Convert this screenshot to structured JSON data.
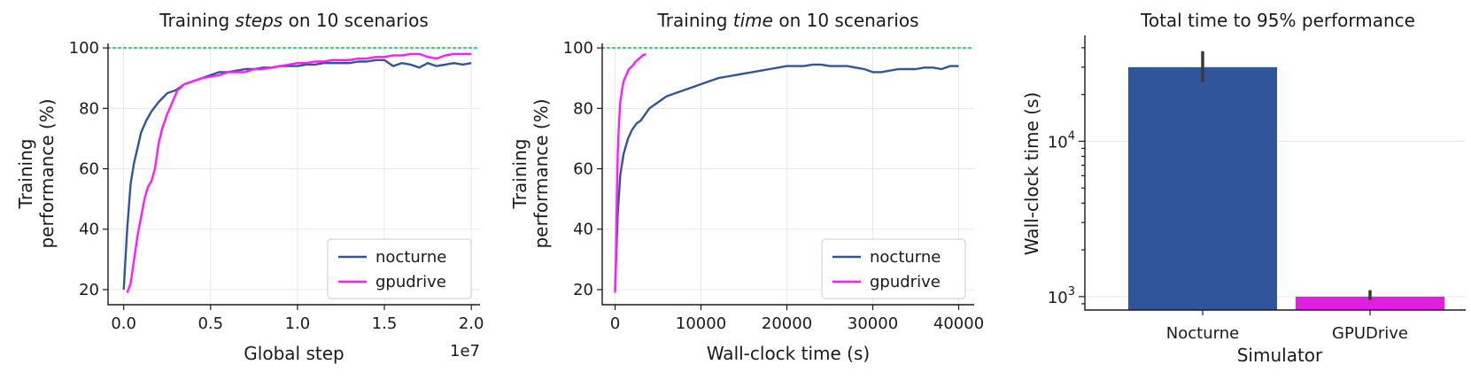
{
  "colors": {
    "nocturne": "#31559a",
    "gpudrive": "#ff1aff",
    "gpudrive_bar": "#e01fe0",
    "target_line": "#4ec97a",
    "errorbar": "#3a3a3a"
  },
  "chart_data": [
    {
      "type": "line",
      "title_prefix": "Training ",
      "title_emph": "steps",
      "title_suffix": " on 10 scenarios",
      "xlabel": "Global step",
      "ylabel_lines": [
        "Training",
        "performance (%)"
      ],
      "x_offset_label": "1e7",
      "xlim": [
        -0.09,
        2.05
      ],
      "ylim": [
        15,
        101.5
      ],
      "xticks": [
        0.0,
        0.5,
        1.0,
        1.5,
        2.0
      ],
      "xtick_labels": [
        "0.0",
        "0.5",
        "1.0",
        "1.5",
        "2.0"
      ],
      "yticks": [
        20,
        40,
        60,
        80,
        100
      ],
      "ytick_labels": [
        "20",
        "40",
        "60",
        "80",
        "100"
      ],
      "target_line_y": 100,
      "grid": true,
      "legend": "lower-right",
      "series": [
        {
          "name": "nocturne",
          "color": "nocturne",
          "x": [
            0.0,
            0.02,
            0.04,
            0.06,
            0.08,
            0.1,
            0.13,
            0.16,
            0.2,
            0.25,
            0.3,
            0.35,
            0.4,
            0.45,
            0.5,
            0.55,
            0.6,
            0.65,
            0.7,
            0.75,
            0.8,
            0.85,
            0.9,
            0.95,
            1.0,
            1.05,
            1.1,
            1.15,
            1.2,
            1.25,
            1.3,
            1.35,
            1.4,
            1.45,
            1.5,
            1.55,
            1.6,
            1.65,
            1.7,
            1.75,
            1.8,
            1.85,
            1.9,
            1.95,
            2.0
          ],
          "y": [
            20,
            40,
            55,
            62,
            67,
            72,
            76,
            79,
            82,
            85,
            86,
            88,
            89,
            90,
            91,
            92,
            92,
            92.5,
            93,
            93,
            93.5,
            93.5,
            94,
            94,
            94,
            94.5,
            94.5,
            95,
            95,
            95,
            95,
            95.5,
            95.5,
            96,
            96,
            94,
            95,
            94.5,
            93.5,
            95,
            94,
            94.5,
            95,
            94.5,
            95
          ]
        },
        {
          "name": "gpudrive",
          "color": "gpudrive",
          "x": [
            0.02,
            0.04,
            0.06,
            0.08,
            0.1,
            0.12,
            0.14,
            0.16,
            0.18,
            0.2,
            0.22,
            0.25,
            0.28,
            0.31,
            0.35,
            0.4,
            0.45,
            0.5,
            0.55,
            0.6,
            0.65,
            0.7,
            0.75,
            0.8,
            0.85,
            0.9,
            0.95,
            1.0,
            1.05,
            1.1,
            1.15,
            1.2,
            1.25,
            1.3,
            1.35,
            1.4,
            1.45,
            1.5,
            1.55,
            1.6,
            1.65,
            1.7,
            1.75,
            1.8,
            1.85,
            1.9,
            1.95,
            2.0
          ],
          "y": [
            19,
            22,
            30,
            38,
            44,
            50,
            54,
            56,
            60,
            68,
            73,
            78,
            82,
            86,
            88,
            89,
            90,
            90.5,
            91,
            92,
            92,
            92,
            93,
            93,
            93.5,
            94,
            94.5,
            95,
            95,
            95.5,
            95.5,
            96,
            96,
            96,
            96.5,
            96.5,
            97,
            97,
            97.5,
            97.5,
            98,
            98,
            97,
            96.5,
            97.5,
            98,
            98,
            98
          ]
        }
      ]
    },
    {
      "type": "line",
      "title_prefix": "Training ",
      "title_emph": "time",
      "title_suffix": " on 10 scenarios",
      "xlabel": "Wall-clock time (s)",
      "ylabel_lines": [
        "Training",
        "performance (%)"
      ],
      "xlim": [
        -1500,
        41800
      ],
      "ylim": [
        15,
        101.5
      ],
      "xticks": [
        0,
        10000,
        20000,
        30000,
        40000
      ],
      "xtick_labels": [
        "0",
        "10000",
        "20000",
        "30000",
        "40000"
      ],
      "yticks": [
        20,
        40,
        60,
        80,
        100
      ],
      "ytick_labels": [
        "20",
        "40",
        "60",
        "80",
        "100"
      ],
      "target_line_y": 100,
      "grid": true,
      "legend": "lower-right",
      "series": [
        {
          "name": "nocturne",
          "color": "nocturne",
          "x": [
            0,
            300,
            600,
            1000,
            1500,
            2000,
            2500,
            3000,
            3500,
            4000,
            5000,
            6000,
            7000,
            8000,
            9000,
            10000,
            11000,
            12000,
            13000,
            14000,
            15000,
            16000,
            17000,
            18000,
            19000,
            20000,
            21000,
            22000,
            23000,
            24000,
            25000,
            26000,
            27000,
            28000,
            29000,
            30000,
            31000,
            32000,
            33000,
            34000,
            35000,
            36000,
            37000,
            38000,
            39000,
            40000
          ],
          "y": [
            20,
            45,
            58,
            65,
            70,
            73,
            75,
            76,
            78,
            80,
            82,
            84,
            85,
            86,
            87,
            88,
            89,
            90,
            90.5,
            91,
            91.5,
            92,
            92.5,
            93,
            93.5,
            94,
            94,
            94,
            94.5,
            94.5,
            94,
            94,
            94,
            93.5,
            93,
            92,
            92,
            92.5,
            93,
            93,
            93,
            93.5,
            93.5,
            93,
            94,
            94
          ]
        },
        {
          "name": "gpudrive",
          "color": "gpudrive",
          "x": [
            0,
            100,
            200,
            300,
            450,
            600,
            800,
            1000,
            1300,
            1600,
            2000,
            2400,
            2800,
            3200,
            3600
          ],
          "y": [
            19,
            30,
            50,
            65,
            75,
            82,
            86,
            89,
            91,
            93,
            94,
            95.5,
            96.5,
            97.5,
            98
          ]
        }
      ]
    },
    {
      "type": "bar",
      "title": "Total time to 95% performance",
      "xlabel": "Simulator",
      "ylabel": "Wall-clock time (s)",
      "yscale": "log",
      "ylim": [
        820,
        48000
      ],
      "ytick_major_base": "10",
      "ytick_major_exps": [
        "3",
        "4"
      ],
      "categories": [
        "Nocturne",
        "GPUDrive"
      ],
      "values": [
        30000,
        1000
      ],
      "error_low": [
        24000,
        950
      ],
      "error_high": [
        38000,
        1100
      ],
      "grid": true
    }
  ]
}
